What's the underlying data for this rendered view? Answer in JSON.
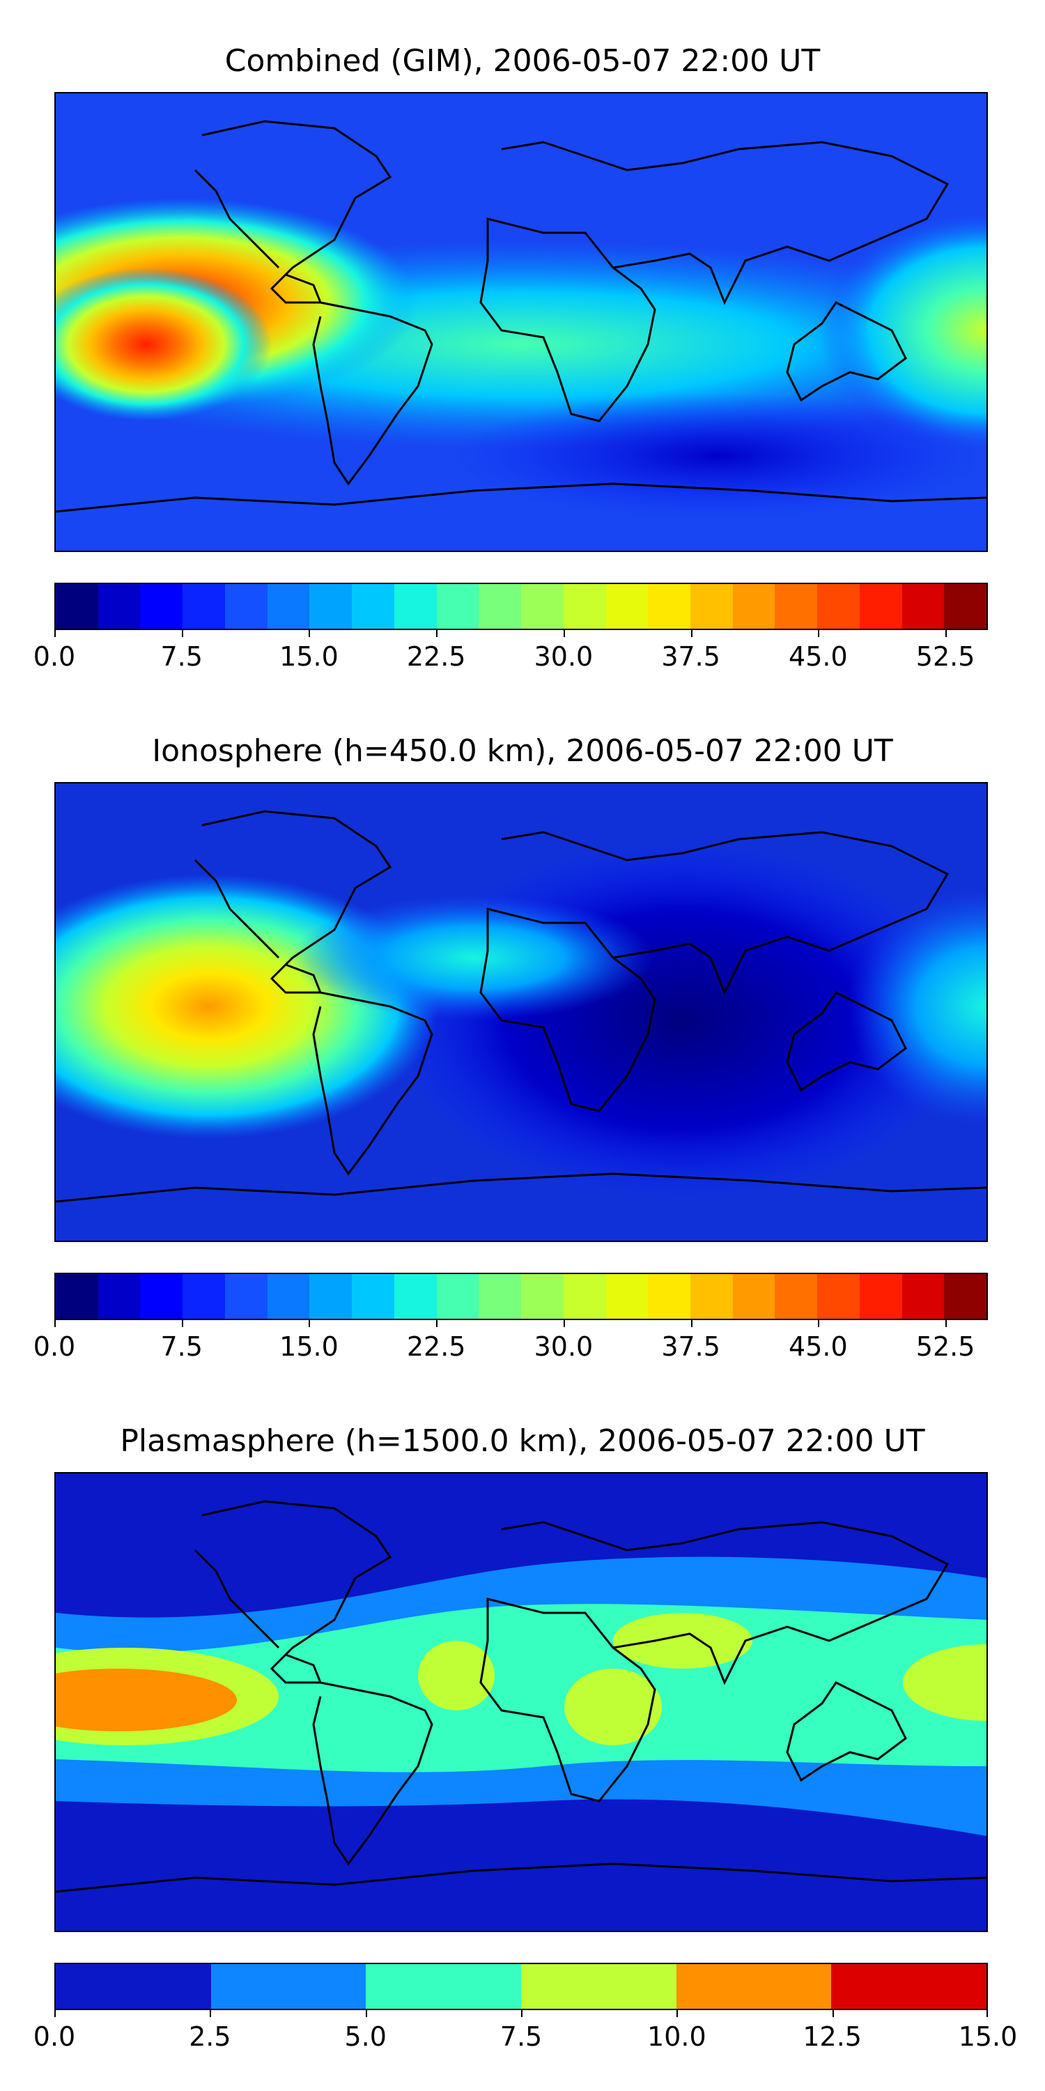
{
  "panels": [
    {
      "title": "Combined (GIM), 2006-05-07 22:00 UT",
      "map_color": "#1846f2",
      "colorbar": {
        "colors": [
          "#00007f",
          "#0000c8",
          "#0000ff",
          "#0a24ff",
          "#1450ff",
          "#0a78ff",
          "#00a4ff",
          "#00c8ff",
          "#17f4e0",
          "#46ffb0",
          "#78ff7c",
          "#9cff58",
          "#c8ff2c",
          "#e8fa0c",
          "#ffe800",
          "#ffc000",
          "#ff9a00",
          "#ff7000",
          "#ff4800",
          "#ff1e00",
          "#d80000",
          "#8f0000"
        ],
        "ticks": [
          "0.0",
          "7.5",
          "15.0",
          "22.5",
          "30.0",
          "37.5",
          "45.0",
          "52.5"
        ]
      }
    },
    {
      "title": "Ionosphere  (h=450.0 km), 2006-05-07 22:00 UT",
      "map_color": "#1031d8",
      "colorbar": {
        "colors": [
          "#00007f",
          "#0000c8",
          "#0000ff",
          "#0a24ff",
          "#1450ff",
          "#0a78ff",
          "#00a4ff",
          "#00c8ff",
          "#17f4e0",
          "#46ffb0",
          "#78ff7c",
          "#9cff58",
          "#c8ff2c",
          "#e8fa0c",
          "#ffe800",
          "#ffc000",
          "#ff9a00",
          "#ff7000",
          "#ff4800",
          "#ff1e00",
          "#d80000",
          "#8f0000"
        ],
        "ticks": [
          "0.0",
          "7.5",
          "15.0",
          "22.5",
          "30.0",
          "37.5",
          "45.0",
          "52.5"
        ]
      }
    },
    {
      "title": "Plasmasphere (h=1500.0 km), 2006-05-07 22:00 UT",
      "map_color": "#0a18c8",
      "colorbar": {
        "colors": [
          "#0a18c8",
          "#0d86ff",
          "#36ffc0",
          "#c0ff36",
          "#ff9000",
          "#dd0000"
        ],
        "ticks": [
          "0.0",
          "2.5",
          "5.0",
          "7.5",
          "10.0",
          "12.5",
          "15.0"
        ]
      }
    }
  ],
  "chart_data": [
    {
      "type": "heatmap",
      "title": "Combined (GIM), 2006-05-07 22:00 UT",
      "xlabel": "",
      "ylabel": "",
      "colorbar_range": [
        0.0,
        55.0
      ],
      "colorbar_levels": 22,
      "colorbar_ticks": [
        0.0,
        7.5,
        15.0,
        22.5,
        30.0,
        37.5,
        45.0,
        52.5
      ],
      "features": [
        {
          "region": "equatorial eastern Pacific / western South America",
          "value": 47
        },
        {
          "region": "Atlantic equatorial band",
          "value": 20
        },
        {
          "region": "western Pacific near Australia",
          "value": 30
        },
        {
          "region": "Africa / Europe / Asia",
          "value": 9
        }
      ],
      "grid": false
    },
    {
      "type": "heatmap",
      "title": "Ionosphere  (h=450.0 km), 2006-05-07 22:00 UT",
      "xlabel": "",
      "ylabel": "",
      "colorbar_range": [
        0.0,
        55.0
      ],
      "colorbar_levels": 22,
      "colorbar_ticks": [
        0.0,
        7.5,
        15.0,
        22.5,
        30.0,
        37.5,
        45.0,
        52.5
      ],
      "features": [
        {
          "region": "equatorial eastern Pacific / western South America",
          "value": 40
        },
        {
          "region": "western Pacific near Australia",
          "value": 22
        },
        {
          "region": "Indian Ocean / Africa",
          "value": 3
        }
      ],
      "grid": false
    },
    {
      "type": "heatmap",
      "title": "Plasmasphere (h=1500.0 km), 2006-05-07 22:00 UT",
      "xlabel": "",
      "ylabel": "",
      "colorbar_range": [
        0.0,
        15.0
      ],
      "colorbar_levels": 6,
      "colorbar_ticks": [
        0.0,
        2.5,
        5.0,
        7.5,
        10.0,
        12.5,
        15.0
      ],
      "features": [
        {
          "region": "eastern Pacific",
          "value": 11
        },
        {
          "region": "Africa / Arabia / western Pacific",
          "value": 8.5
        },
        {
          "region": "equatorial band",
          "value": 6
        },
        {
          "region": "mid latitudes",
          "value": 3.5
        },
        {
          "region": "high latitudes",
          "value": 1.5
        }
      ],
      "grid": false
    }
  ]
}
